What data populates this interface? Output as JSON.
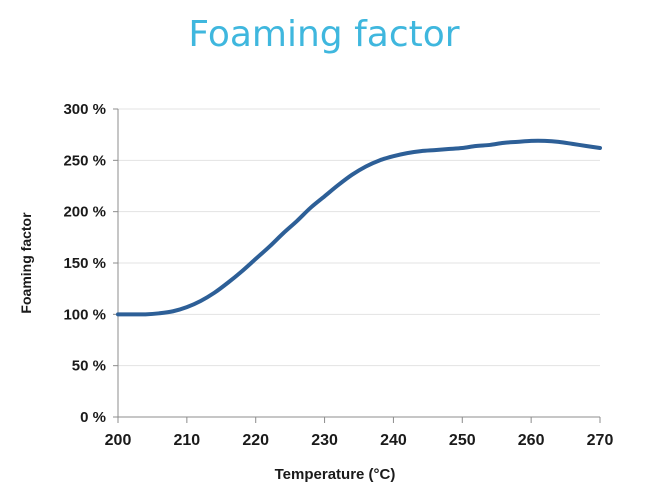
{
  "chart_data": {
    "type": "line",
    "title": "Foaming factor",
    "xlabel": "Temperature (°C)",
    "ylabel": "Foaming factor",
    "xlim": [
      200,
      270
    ],
    "ylim": [
      0,
      300
    ],
    "x_ticks": [
      "200",
      "210",
      "220",
      "230",
      "240",
      "250",
      "260",
      "270"
    ],
    "y_ticks": [
      "0 %",
      "50 %",
      "100 %",
      "150 %",
      "200 %",
      "250 %",
      "300 %"
    ],
    "grid": true,
    "legend": "none",
    "colors": {
      "title": "#3fb7de",
      "series": "#2d5f97",
      "grid": "#e3e3e3",
      "axis": "#8c8c8c",
      "text": "#1a1a1a"
    },
    "series": [
      {
        "x": [
          200,
          202,
          204,
          206,
          208,
          210,
          212,
          214,
          216,
          218,
          220,
          222,
          224,
          226,
          228,
          230,
          232,
          234,
          236,
          238,
          240,
          242,
          244,
          246,
          248,
          250,
          252,
          254,
          256,
          258,
          260,
          262,
          264,
          266,
          268,
          270
        ],
        "y": [
          100,
          100,
          100,
          101,
          103,
          107,
          113,
          121,
          131,
          142,
          154,
          166,
          179,
          191,
          204,
          215,
          226,
          236,
          244,
          250,
          254,
          257,
          259,
          260,
          261,
          262,
          264,
          265,
          267,
          268,
          269,
          269,
          268,
          266,
          264,
          262
        ]
      }
    ]
  }
}
